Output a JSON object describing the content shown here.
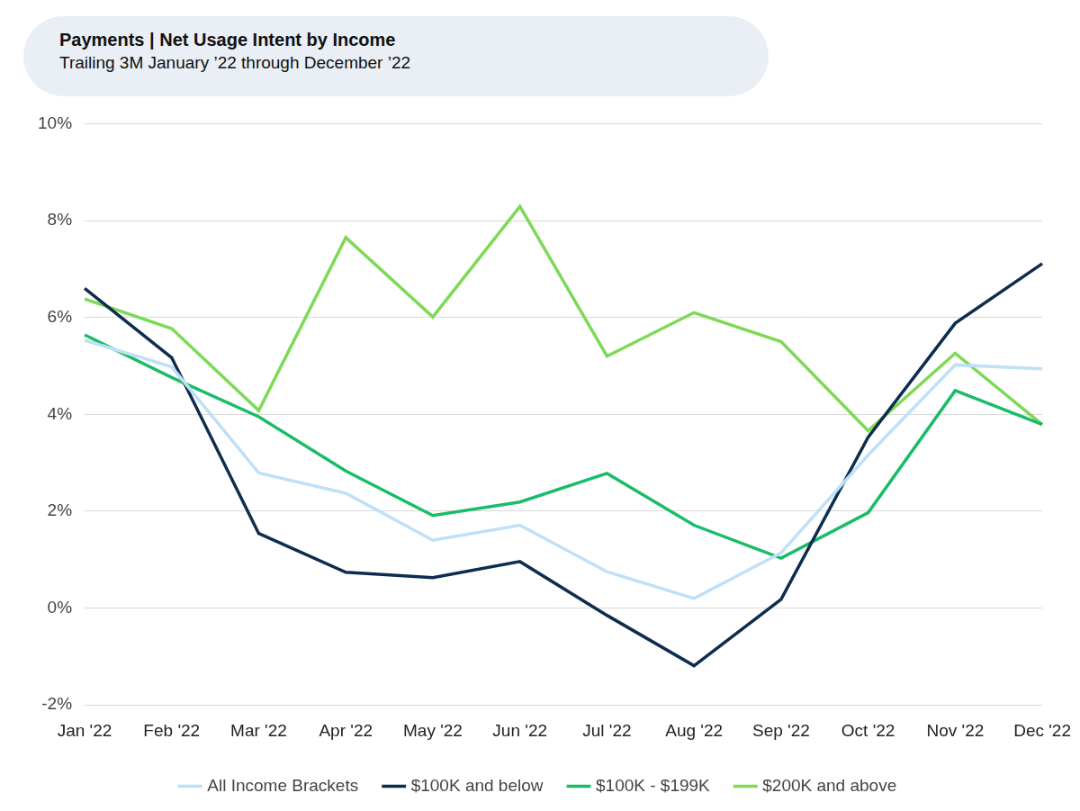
{
  "chart_data": {
    "type": "line",
    "title": "Payments | Net Usage Intent by Income",
    "subtitle": "Trailing 3M January ’22 through December ’22",
    "categories": [
      "Jan '22",
      "Feb '22",
      "Mar '22",
      "Apr '22",
      "May '22",
      "Jun '22",
      "Jul '22",
      "Aug '22",
      "Sep '22",
      "Oct '22",
      "Nov '22",
      "Dec '22"
    ],
    "series": [
      {
        "name": "All Income Brackets",
        "color": "#bfe0f7",
        "values": [
          5.53,
          4.98,
          2.79,
          2.37,
          1.4,
          1.71,
          0.75,
          0.2,
          1.14,
          3.16,
          5.02,
          4.94
        ]
      },
      {
        "name": "$100K and below",
        "color": "#0d2d4f",
        "values": [
          6.6,
          5.17,
          1.54,
          0.74,
          0.63,
          0.96,
          -0.15,
          -1.19,
          0.18,
          3.53,
          5.88,
          7.11
        ]
      },
      {
        "name": "$100K - $199K",
        "color": "#1abc6a",
        "values": [
          5.64,
          4.76,
          3.95,
          2.83,
          1.91,
          2.19,
          2.78,
          1.71,
          1.03,
          1.97,
          4.49,
          3.79
        ]
      },
      {
        "name": "$200K and above",
        "color": "#7ed957",
        "values": [
          6.38,
          5.77,
          4.08,
          7.65,
          6.01,
          8.29,
          5.2,
          6.1,
          5.5,
          3.66,
          5.26,
          3.79
        ]
      }
    ],
    "ylim": [
      -2,
      10
    ],
    "yticks": [
      {
        "value": -2,
        "label": "-2%"
      },
      {
        "value": 0,
        "label": "0%"
      },
      {
        "value": 2,
        "label": "2%"
      },
      {
        "value": 4,
        "label": "4%"
      },
      {
        "value": 6,
        "label": "6%"
      },
      {
        "value": 8,
        "label": "8%"
      },
      {
        "value": 10,
        "label": "10%"
      }
    ],
    "grid": true,
    "legend": "bottom"
  }
}
